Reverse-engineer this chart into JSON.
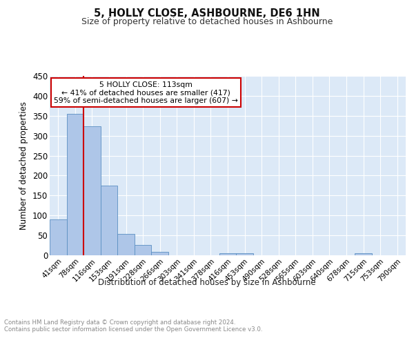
{
  "title": "5, HOLLY CLOSE, ASHBOURNE, DE6 1HN",
  "subtitle": "Size of property relative to detached houses in Ashbourne",
  "xlabel": "Distribution of detached houses by size in Ashbourne",
  "ylabel": "Number of detached properties",
  "bar_labels": [
    "41sqm",
    "78sqm",
    "116sqm",
    "153sqm",
    "191sqm",
    "228sqm",
    "266sqm",
    "303sqm",
    "341sqm",
    "378sqm",
    "416sqm",
    "453sqm",
    "490sqm",
    "528sqm",
    "565sqm",
    "603sqm",
    "640sqm",
    "678sqm",
    "715sqm",
    "753sqm",
    "790sqm"
  ],
  "bar_values": [
    90,
    355,
    324,
    175,
    54,
    26,
    8,
    0,
    0,
    0,
    5,
    5,
    0,
    0,
    0,
    0,
    0,
    0,
    5,
    0,
    0
  ],
  "bar_color": "#aec6e8",
  "bar_edge_color": "#5a8fc2",
  "bg_color": "#dce9f7",
  "grid_color": "#ffffff",
  "vline_color": "#cc0000",
  "annotation_text": "5 HOLLY CLOSE: 113sqm\n← 41% of detached houses are smaller (417)\n59% of semi-detached houses are larger (607) →",
  "annotation_box_color": "#ffffff",
  "annotation_box_edge": "#cc0000",
  "footnote": "Contains HM Land Registry data © Crown copyright and database right 2024.\nContains public sector information licensed under the Open Government Licence v3.0.",
  "ylim": [
    0,
    450
  ],
  "yticks": [
    0,
    50,
    100,
    150,
    200,
    250,
    300,
    350,
    400,
    450
  ]
}
